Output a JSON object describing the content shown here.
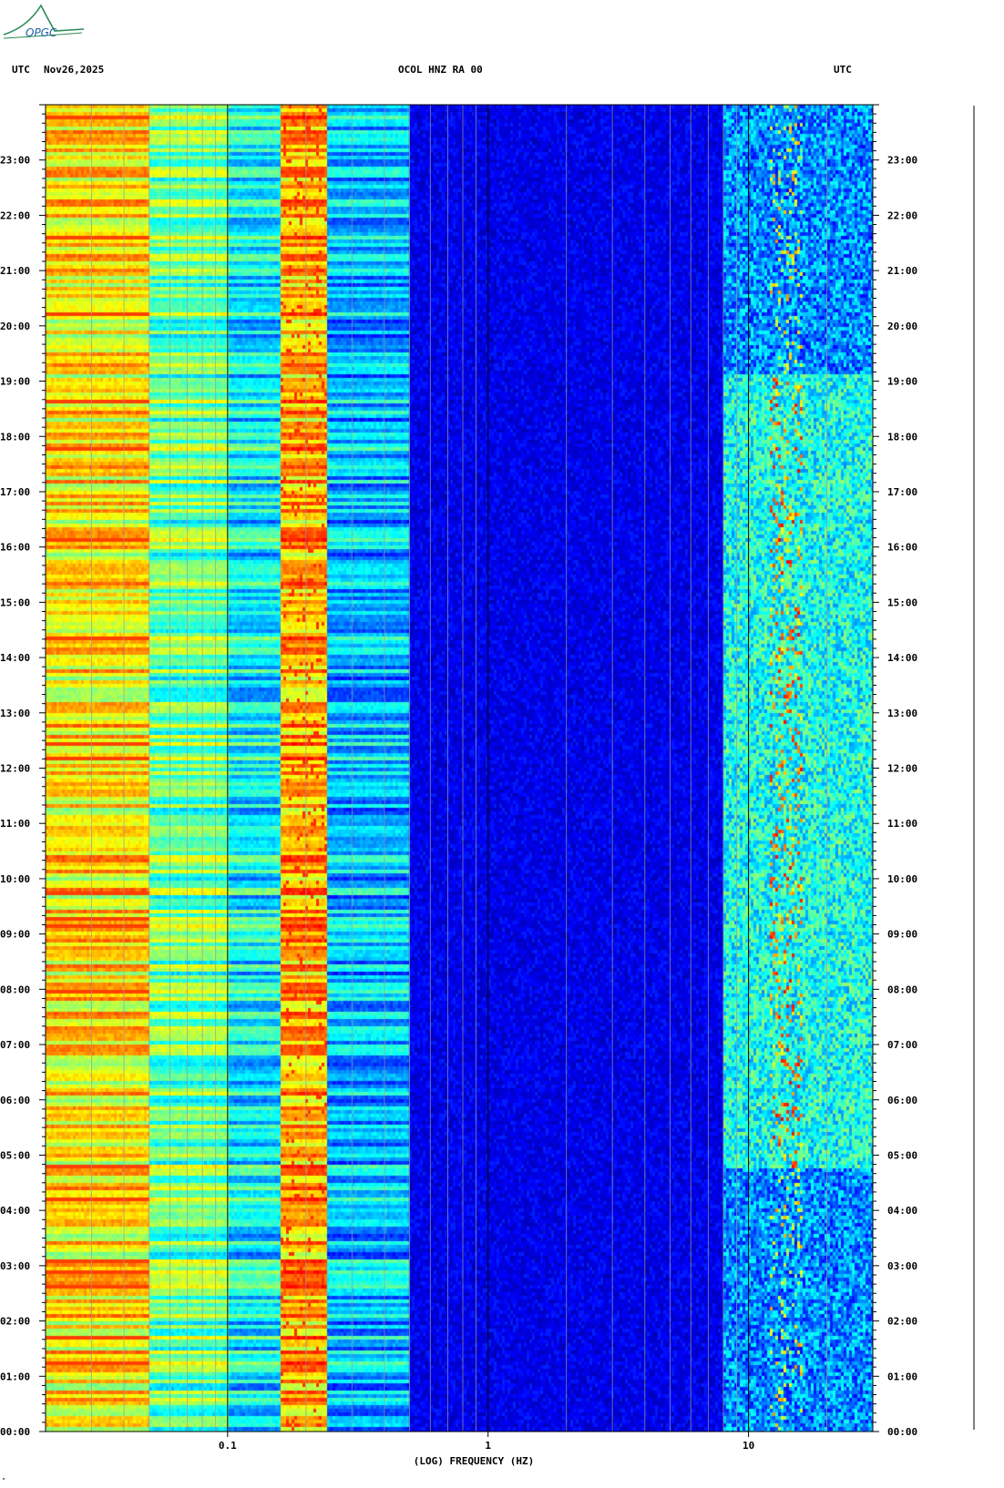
{
  "header": {
    "left_tz": "UTC",
    "date": "Nov26,2025",
    "station": "OCOL HNZ RA 00",
    "right_tz": "UTC"
  },
  "logo": {
    "text": "OPGC",
    "color": "#2e8b57"
  },
  "footer": {
    "mark": "\""
  },
  "chart_data": {
    "type": "heatmap",
    "title": "OCOL HNZ RA 00",
    "xlabel": "(LOG) FREQUENCY (HZ)",
    "x_scale": "log",
    "xlim": [
      0.02,
      30
    ],
    "x_ticks": [
      {
        "value": 0.1,
        "label": "0.1"
      },
      {
        "value": 1,
        "label": "1"
      },
      {
        "value": 10,
        "label": "10"
      }
    ],
    "ylim_hours": [
      0,
      24
    ],
    "y_ticks_left": [
      "23:00",
      "22:00",
      "21:00",
      "20:00",
      "19:00",
      "18:00",
      "17:00",
      "16:00",
      "15:00",
      "14:00",
      "13:00",
      "12:00",
      "11:00",
      "10:00",
      "09:00",
      "08:00",
      "07:00",
      "06:00",
      "05:00",
      "04:00",
      "03:00",
      "02:00",
      "01:00",
      "00:00"
    ],
    "y_ticks_right": [
      "23:00",
      "22:00",
      "21:00",
      "20:00",
      "19:00",
      "18:00",
      "17:00",
      "16:00",
      "15:00",
      "14:00",
      "13:00",
      "12:00",
      "11:00",
      "10:00",
      "09:00",
      "08:00",
      "07:00",
      "06:00",
      "05:00",
      "04:00",
      "03:00",
      "02:00",
      "01:00",
      "00:00"
    ],
    "colormap": [
      "#00007f",
      "#0000ff",
      "#0080ff",
      "#00ffff",
      "#80ff80",
      "#ffff00",
      "#ff8000",
      "#ff0000"
    ],
    "spectral_bands": [
      {
        "f_low": 0.02,
        "f_high": 0.05,
        "level": 0.74
      },
      {
        "f_low": 0.05,
        "f_high": 0.1,
        "level": 0.55
      },
      {
        "f_low": 0.1,
        "f_high": 0.16,
        "level": 0.42
      },
      {
        "f_low": 0.16,
        "f_high": 0.24,
        "level": 0.8
      },
      {
        "f_low": 0.24,
        "f_high": 0.5,
        "level": 0.35
      },
      {
        "f_low": 0.5,
        "f_high": 8,
        "level": 0.12
      },
      {
        "f_low": 8,
        "f_high": 30,
        "level": 0.3
      }
    ]
  }
}
